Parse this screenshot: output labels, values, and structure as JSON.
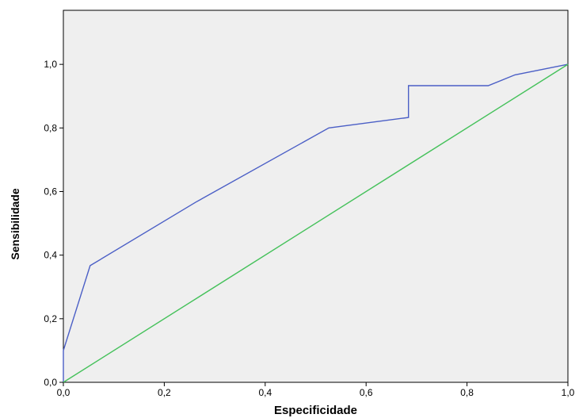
{
  "chart_data": {
    "type": "line",
    "title": "",
    "xlabel": "Especificidade",
    "ylabel": "Sensibilidade",
    "xlim": [
      0,
      1
    ],
    "ylim": [
      0,
      1.17
    ],
    "xticks": [
      0,
      0.2,
      0.4,
      0.6,
      0.8,
      1.0
    ],
    "yticks": [
      0,
      0.2,
      0.4,
      0.6,
      0.8,
      1.0
    ],
    "xtick_labels": [
      "0,0",
      "0,2",
      "0,4",
      "0,6",
      "0,8",
      "1,0"
    ],
    "ytick_labels": [
      "0,0",
      "0,2",
      "0,4",
      "0,6",
      "0,8",
      "1,0"
    ],
    "grid": false,
    "legend": "none",
    "series": [
      {
        "color": "#4b5fc6",
        "x": [
          0,
          0,
          0.053,
          0.263,
          0.526,
          0.684,
          0.684,
          0.842,
          0.895,
          1.0
        ],
        "y": [
          0,
          0.1,
          0.367,
          0.567,
          0.8,
          0.833,
          0.933,
          0.933,
          0.967,
          1.0
        ]
      },
      {
        "color": "#44c15a",
        "x": [
          0,
          1
        ],
        "y": [
          0,
          1
        ]
      }
    ],
    "plot_background": "#efefef"
  }
}
